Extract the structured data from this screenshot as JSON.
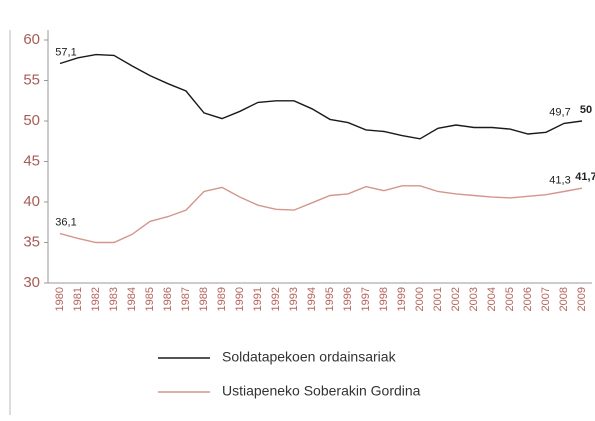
{
  "chart_data": {
    "type": "line",
    "categories": [
      "1980",
      "1981",
      "1982",
      "1983",
      "1984",
      "1985",
      "1986",
      "1987",
      "1988",
      "1989",
      "1990",
      "1991",
      "1992",
      "1993",
      "1994",
      "1995",
      "1996",
      "1997",
      "1998",
      "1999",
      "2000",
      "2001",
      "2002",
      "2003",
      "2004",
      "2005",
      "2006",
      "2007",
      "2008",
      "2009"
    ],
    "series": [
      {
        "name": "Soldatapekoen ordainsariak",
        "color": "#1a1a1a",
        "values": [
          57.1,
          57.8,
          58.2,
          58.1,
          56.8,
          55.6,
          54.6,
          53.7,
          51.0,
          50.3,
          51.2,
          52.3,
          52.5,
          52.5,
          51.5,
          50.2,
          49.8,
          48.9,
          48.7,
          48.2,
          47.8,
          49.1,
          49.5,
          49.2,
          49.2,
          49.0,
          48.4,
          48.6,
          49.7,
          50
        ],
        "value_labels": [
          "57,1",
          null,
          null,
          null,
          null,
          null,
          null,
          null,
          null,
          null,
          null,
          null,
          null,
          null,
          null,
          null,
          null,
          null,
          null,
          null,
          null,
          null,
          null,
          null,
          null,
          null,
          null,
          null,
          "49,7",
          "50"
        ]
      },
      {
        "name": "Ustiapeneko Soberakin Gordina",
        "color": "#d4968c",
        "values": [
          36.1,
          35.5,
          35.0,
          35.0,
          36.0,
          37.6,
          38.2,
          39.0,
          41.3,
          41.8,
          40.6,
          39.6,
          39.1,
          39.0,
          39.9,
          40.8,
          41.0,
          41.9,
          41.4,
          42.0,
          42.0,
          41.3,
          41.0,
          40.8,
          40.6,
          40.5,
          40.7,
          40.9,
          41.3,
          41.7
        ],
        "value_labels": [
          "36,1",
          null,
          null,
          null,
          null,
          null,
          null,
          null,
          null,
          null,
          null,
          null,
          null,
          null,
          null,
          null,
          null,
          null,
          null,
          null,
          null,
          null,
          null,
          null,
          null,
          null,
          null,
          null,
          "41,3",
          "41,7"
        ]
      }
    ],
    "ylim": [
      30,
      60
    ],
    "yticks": [
      30,
      35,
      40,
      45,
      50,
      55,
      60
    ]
  }
}
